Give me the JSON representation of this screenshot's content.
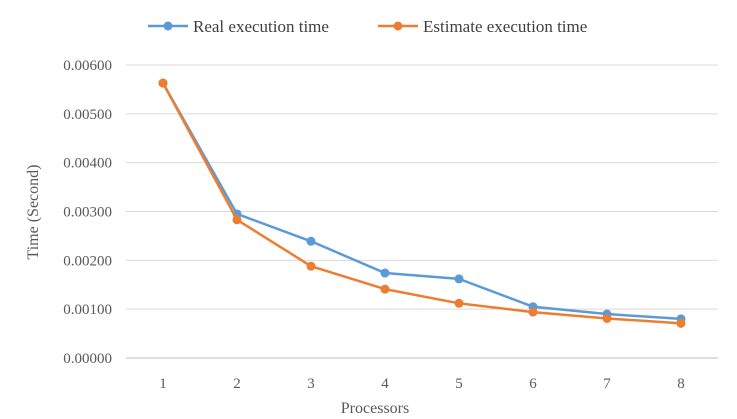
{
  "chart_data": {
    "type": "line",
    "categories": [
      "1",
      "2",
      "3",
      "4",
      "5",
      "6",
      "7",
      "8"
    ],
    "series": [
      {
        "name": "Real execution time",
        "color": "#5b9bd5",
        "values": [
          0.00563,
          0.00295,
          0.00239,
          0.00174,
          0.00162,
          0.00105,
          0.0009,
          0.0008
        ]
      },
      {
        "name": "Estimate execution time",
        "color": "#ed7d31",
        "values": [
          0.00563,
          0.00283,
          0.00188,
          0.00141,
          0.00112,
          0.00094,
          0.00081,
          0.00071
        ]
      }
    ],
    "yticks": [
      "0.00000",
      "0.00100",
      "0.00200",
      "0.00300",
      "0.00400",
      "0.00500",
      "0.00600"
    ],
    "ylim": [
      0,
      0.006
    ],
    "xlabel": "Processors",
    "ylabel": "Time (Second)",
    "grid": true,
    "legend_position": "top-left"
  }
}
